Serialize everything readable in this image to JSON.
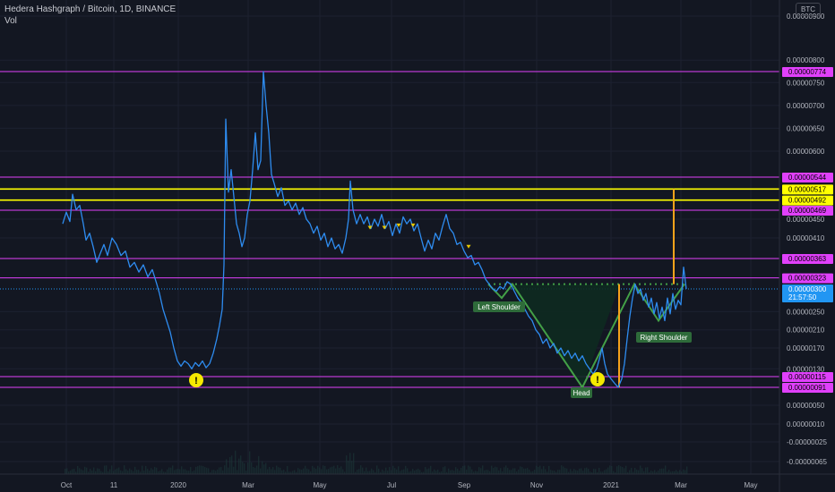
{
  "header": {
    "title": "Hedera Hashgraph / Bitcoin, 1D, BINANCE",
    "indicator": "Vol"
  },
  "currency_button": "BTC",
  "colors": {
    "background": "#131722",
    "price_line": "#2e8cf0",
    "magenta": "#e040fb",
    "yellow": "#ffff00",
    "orange": "#f7a21b",
    "pattern": "#43a047",
    "pattern_fill": "#0e2a20",
    "current": "#2196f3"
  },
  "chart_data": {
    "type": "line",
    "title": "Hedera Hashgraph / Bitcoin, 1D, BINANCE",
    "x_ticks": [
      "Oct",
      "11",
      "2020",
      "Mar",
      "May",
      "Jul",
      "Sep",
      "Nov",
      "2021",
      "Mar",
      "May"
    ],
    "y_ticks": [
      "0.00000900",
      "0.00000800",
      "0.00000750",
      "0.00000700",
      "0.00000650",
      "0.00000600",
      "0.00000450",
      "0.00000410",
      "0.00000250",
      "0.00000210",
      "0.00000170",
      "0.00000130",
      "0.00000050",
      "0.00000010",
      "-0.00000025",
      "-0.00000065"
    ],
    "y_tick_values": [
      9e-06,
      8e-06,
      7.5e-06,
      7e-06,
      6.5e-06,
      6e-06,
      4.5e-06,
      4.1e-06,
      2.5e-06,
      2.1e-06,
      1.7e-06,
      1.3e-06,
      5e-07,
      1e-07,
      -2.5e-07,
      -6.5e-07
    ],
    "horizontal_levels": [
      {
        "label": "0.00000774",
        "value": 7.74e-06,
        "color": "magenta"
      },
      {
        "label": "0.00000544",
        "value": 5.44e-06,
        "color": "magenta"
      },
      {
        "label": "0.00000517",
        "value": 5.17e-06,
        "color": "yellow"
      },
      {
        "label": "0.00000492",
        "value": 4.92e-06,
        "color": "yellow"
      },
      {
        "label": "0.00000469",
        "value": 4.69e-06,
        "color": "magenta"
      },
      {
        "label": "0.00000363",
        "value": 3.63e-06,
        "color": "magenta"
      },
      {
        "label": "0.00000323",
        "value": 3.23e-06,
        "color": "magenta"
      },
      {
        "label": "0.00000115",
        "value": 1.15e-06,
        "color": "magenta"
      },
      {
        "label": "0.00000091",
        "value": 9.1e-07,
        "color": "magenta"
      }
    ],
    "current_price": {
      "label": "0.00000300",
      "value": 3e-06,
      "countdown": "21:57:50"
    },
    "annotations": [
      "Left Shoulder",
      "Head",
      "Right Shoulder"
    ],
    "series": [
      {
        "values": [
          [
            70,
            4.4e-06
          ],
          [
            74,
            4.65e-06
          ],
          [
            78,
            4.45e-06
          ],
          [
            81,
            5.05e-06
          ],
          [
            85,
            4.7e-06
          ],
          [
            89,
            4.8e-06
          ],
          [
            93,
            4.4e-06
          ],
          [
            96,
            4.05e-06
          ],
          [
            100,
            4.2e-06
          ],
          [
            104,
            3.9e-06
          ],
          [
            108,
            3.55e-06
          ],
          [
            112,
            3.75e-06
          ],
          [
            116,
            3.95e-06
          ],
          [
            120,
            3.7e-06
          ],
          [
            125,
            4.1e-06
          ],
          [
            130,
            3.95e-06
          ],
          [
            135,
            3.7e-06
          ],
          [
            140,
            3.8e-06
          ],
          [
            145,
            3.45e-06
          ],
          [
            150,
            3.55e-06
          ],
          [
            155,
            3.35e-06
          ],
          [
            160,
            3.5e-06
          ],
          [
            165,
            3.25e-06
          ],
          [
            170,
            3.4e-06
          ],
          [
            175,
            3.1e-06
          ],
          [
            178,
            2.9e-06
          ],
          [
            182,
            2.55e-06
          ],
          [
            186,
            2.3e-06
          ],
          [
            190,
            2.05e-06
          ],
          [
            194,
            1.7e-06
          ],
          [
            198,
            1.45e-06
          ],
          [
            202,
            1.35e-06
          ],
          [
            206,
            1.45e-06
          ],
          [
            210,
            1.4e-06
          ],
          [
            214,
            1.3e-06
          ],
          [
            218,
            1.42e-06
          ],
          [
            222,
            1.35e-06
          ],
          [
            226,
            1.45e-06
          ],
          [
            230,
            1.32e-06
          ],
          [
            234,
            1.4e-06
          ],
          [
            238,
            1.6e-06
          ],
          [
            242,
            1.9e-06
          ],
          [
            245,
            2.2e-06
          ],
          [
            248,
            2.55e-06
          ],
          [
            250,
            3.5e-06
          ],
          [
            252,
            6.7e-06
          ],
          [
            255,
            5.1e-06
          ],
          [
            258,
            5.6e-06
          ],
          [
            261,
            5e-06
          ],
          [
            264,
            4.4e-06
          ],
          [
            267,
            4.2e-06
          ],
          [
            270,
            3.9e-06
          ],
          [
            273,
            4.1e-06
          ],
          [
            276,
            4.6e-06
          ],
          [
            279,
            4.9e-06
          ],
          [
            282,
            5.6e-06
          ],
          [
            285,
            6.4e-06
          ],
          [
            288,
            5.6e-06
          ],
          [
            291,
            5.8e-06
          ],
          [
            294,
            7.74e-06
          ],
          [
            297,
            7e-06
          ],
          [
            300,
            6.4e-06
          ],
          [
            303,
            5.5e-06
          ],
          [
            306,
            5.3e-06
          ],
          [
            310,
            5e-06
          ],
          [
            314,
            5.2e-06
          ],
          [
            318,
            4.8e-06
          ],
          [
            322,
            4.9e-06
          ],
          [
            326,
            4.7e-06
          ],
          [
            330,
            4.85e-06
          ],
          [
            334,
            4.6e-06
          ],
          [
            338,
            4.75e-06
          ],
          [
            342,
            4.5e-06
          ],
          [
            346,
            4.4e-06
          ],
          [
            350,
            4.2e-06
          ],
          [
            354,
            4.35e-06
          ],
          [
            358,
            4.05e-06
          ],
          [
            362,
            4.2e-06
          ],
          [
            366,
            3.9e-06
          ],
          [
            370,
            4.1e-06
          ],
          [
            374,
            3.85e-06
          ],
          [
            378,
            3.95e-06
          ],
          [
            382,
            3.75e-06
          ],
          [
            386,
            4.1e-06
          ],
          [
            389,
            4.5e-06
          ],
          [
            391,
            5.35e-06
          ],
          [
            394,
            4.7e-06
          ],
          [
            398,
            4.4e-06
          ],
          [
            402,
            4.6e-06
          ],
          [
            406,
            4.4e-06
          ],
          [
            410,
            4.55e-06
          ],
          [
            414,
            4.3e-06
          ],
          [
            418,
            4.5e-06
          ],
          [
            422,
            4.35e-06
          ],
          [
            426,
            4.6e-06
          ],
          [
            430,
            4.3e-06
          ],
          [
            434,
            4.45e-06
          ],
          [
            438,
            4.15e-06
          ],
          [
            442,
            4.4e-06
          ],
          [
            446,
            4.2e-06
          ],
          [
            450,
            4.55e-06
          ],
          [
            454,
            4.4e-06
          ],
          [
            458,
            4.5e-06
          ],
          [
            462,
            4.25e-06
          ],
          [
            466,
            4.4e-06
          ],
          [
            470,
            4.1e-06
          ],
          [
            474,
            3.8e-06
          ],
          [
            478,
            4.05e-06
          ],
          [
            482,
            3.85e-06
          ],
          [
            486,
            4.2e-06
          ],
          [
            490,
            4.05e-06
          ],
          [
            494,
            4.35e-06
          ],
          [
            498,
            4.6e-06
          ],
          [
            502,
            4.3e-06
          ],
          [
            506,
            4.2e-06
          ],
          [
            510,
            3.95e-06
          ],
          [
            514,
            4e-06
          ],
          [
            518,
            3.8e-06
          ],
          [
            522,
            3.65e-06
          ],
          [
            526,
            3.7e-06
          ],
          [
            530,
            3.5e-06
          ],
          [
            534,
            3.55e-06
          ],
          [
            538,
            3.4e-06
          ],
          [
            542,
            3.2e-06
          ],
          [
            546,
            3.1e-06
          ],
          [
            550,
            3e-06
          ],
          [
            554,
            2.95e-06
          ],
          [
            558,
            3.05e-06
          ],
          [
            562,
            3e-06
          ],
          [
            566,
            3.15e-06
          ],
          [
            570,
            3.1e-06
          ],
          [
            574,
            2.95e-06
          ],
          [
            578,
            2.8e-06
          ],
          [
            582,
            2.7e-06
          ],
          [
            586,
            2.55e-06
          ],
          [
            590,
            2.4e-06
          ],
          [
            594,
            2.3e-06
          ],
          [
            598,
            2.1e-06
          ],
          [
            602,
            2e-06
          ],
          [
            606,
            1.8e-06
          ],
          [
            610,
            1.9e-06
          ],
          [
            614,
            1.7e-06
          ],
          [
            618,
            1.8e-06
          ],
          [
            622,
            1.6e-06
          ],
          [
            626,
            1.7e-06
          ],
          [
            630,
            1.55e-06
          ],
          [
            634,
            1.65e-06
          ],
          [
            638,
            1.5e-06
          ],
          [
            642,
            1.6e-06
          ],
          [
            646,
            1.45e-06
          ],
          [
            650,
            1.55e-06
          ],
          [
            654,
            1.4e-06
          ],
          [
            658,
            1.3e-06
          ],
          [
            662,
            1.2e-06
          ],
          [
            666,
            1.3e-06
          ],
          [
            670,
            1.55e-06
          ],
          [
            672,
            1.7e-06
          ],
          [
            675,
            1.4e-06
          ],
          [
            678,
            1.2e-06
          ],
          [
            682,
            1.1e-06
          ],
          [
            686,
            1e-06
          ],
          [
            690,
            9.1e-07
          ],
          [
            694,
            1.1e-06
          ],
          [
            697,
            1.4e-06
          ],
          [
            700,
            1.9e-06
          ],
          [
            703,
            2.4e-06
          ],
          [
            706,
            2.8e-06
          ],
          [
            709,
            3.1e-06
          ],
          [
            712,
            2.9e-06
          ],
          [
            715,
            3e-06
          ],
          [
            718,
            2.75e-06
          ],
          [
            721,
            2.9e-06
          ],
          [
            724,
            2.6e-06
          ],
          [
            727,
            2.8e-06
          ],
          [
            730,
            2.45e-06
          ],
          [
            733,
            2.7e-06
          ],
          [
            736,
            2.35e-06
          ],
          [
            739,
            2.6e-06
          ],
          [
            742,
            2.3e-06
          ],
          [
            745,
            2.8e-06
          ],
          [
            748,
            2.45e-06
          ],
          [
            751,
            2.9e-06
          ],
          [
            754,
            2.55e-06
          ],
          [
            757,
            2.75e-06
          ],
          [
            760,
            2.65e-06
          ],
          [
            763,
            3.45e-06
          ],
          [
            766,
            3e-06
          ]
        ]
      }
    ]
  }
}
